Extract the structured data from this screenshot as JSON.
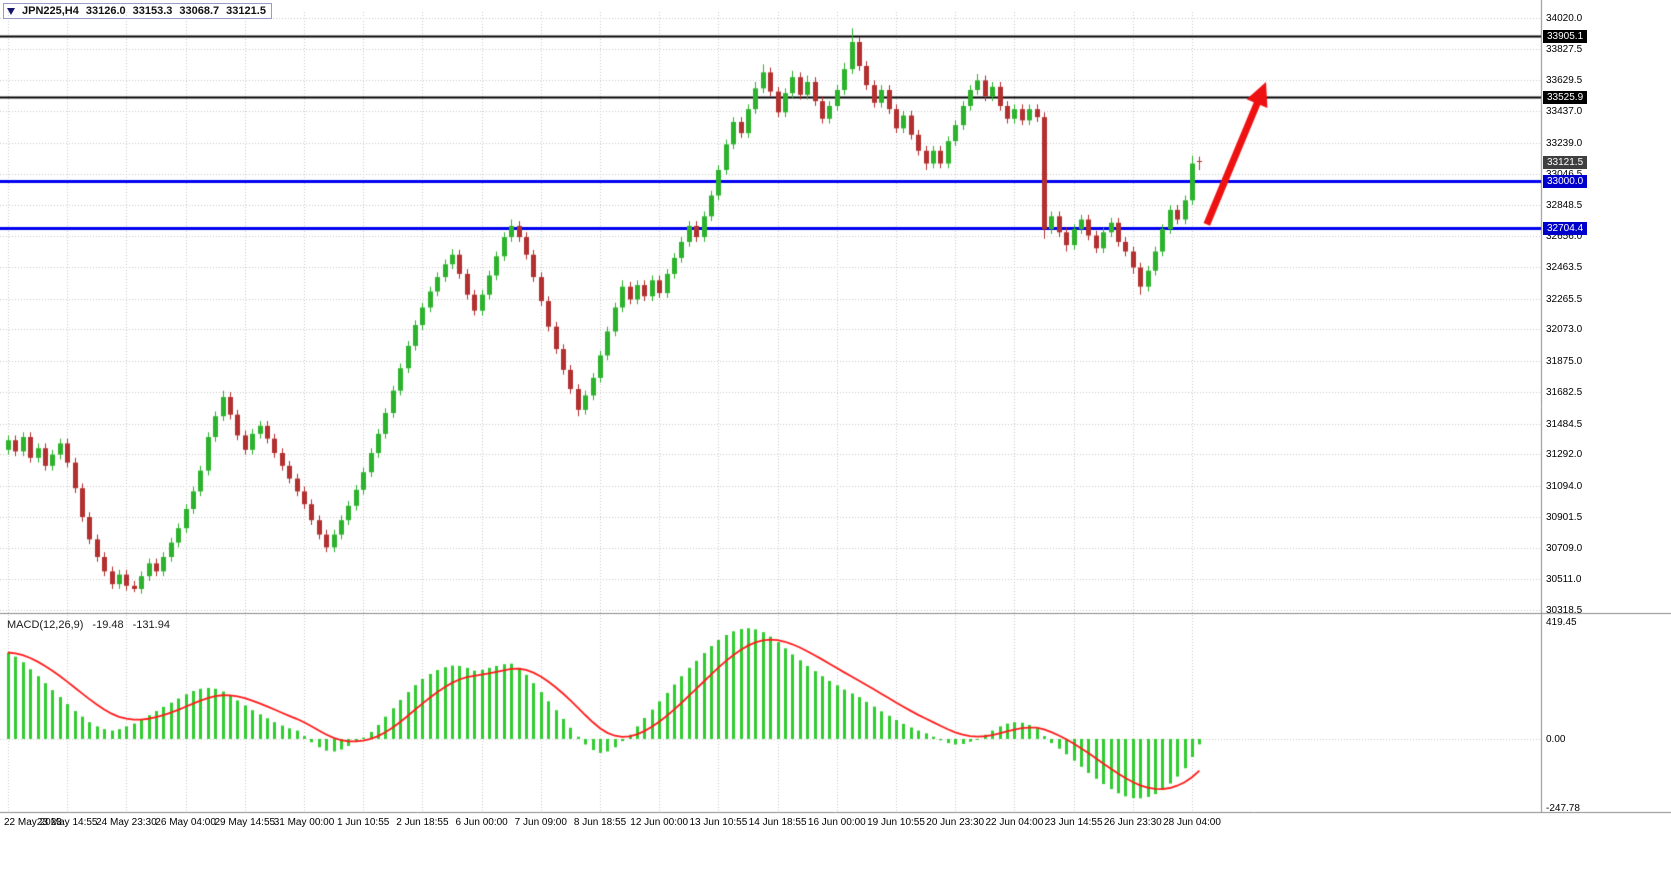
{
  "header": {
    "symbol": "JPN225,H4",
    "open": "33126.0",
    "high": "33153.3",
    "low": "33068.7",
    "close": "33121.5"
  },
  "macd_label": {
    "name": "MACD(12,26,9)",
    "main": "-19.48",
    "signal": "-131.94"
  },
  "chart_data": {
    "type": "candlestick",
    "symbol": "JPN225",
    "timeframe": "H4",
    "price_axis": {
      "min": 30318.5,
      "max": 34020.0,
      "ticks": [
        34020.0,
        33827.5,
        33629.5,
        33437.0,
        33239.0,
        33046.5,
        32848.5,
        32656.0,
        32463.5,
        32265.5,
        32073.0,
        31875.0,
        31682.5,
        31484.5,
        31292.0,
        31094.0,
        30901.5,
        30709.0,
        30511.0,
        30318.5
      ]
    },
    "price_badges": [
      {
        "value": 33905.1,
        "bg": "#000000"
      },
      {
        "value": 33525.9,
        "bg": "#000000"
      },
      {
        "value": 33121.5,
        "bg": "#3f3f3f"
      },
      {
        "value": 33000.0,
        "bg": "#0000cd"
      },
      {
        "value": 32704.4,
        "bg": "#0000cd"
      }
    ],
    "hlines": [
      {
        "value": 33905.1,
        "color": "#000000",
        "width": 2
      },
      {
        "value": 33525.9,
        "color": "#000000",
        "width": 2
      },
      {
        "value": 33000.0,
        "color": "#0000ee",
        "width": 3
      },
      {
        "value": 32704.4,
        "color": "#0000ee",
        "width": 3
      }
    ],
    "time_ticks": [
      "22 May 2023",
      "23 May 14:55",
      "24 May 23:30",
      "26 May 04:00",
      "29 May 14:55",
      "31 May 00:00",
      "1 Jun 10:55",
      "2 Jun 18:55",
      "6 Jun 00:00",
      "7 Jun 09:00",
      "8 Jun 18:55",
      "12 Jun 00:00",
      "13 Jun 10:55",
      "14 Jun 18:55",
      "16 Jun 00:00",
      "19 Jun 10:55",
      "20 Jun 23:30",
      "22 Jun 04:00",
      "23 Jun 14:55",
      "26 Jun 23:30",
      "28 Jun 04:00"
    ],
    "candles": [
      [
        31320,
        31410,
        31290,
        31380
      ],
      [
        31380,
        31410,
        31280,
        31310
      ],
      [
        31310,
        31430,
        31280,
        31400
      ],
      [
        31400,
        31430,
        31240,
        31270
      ],
      [
        31270,
        31360,
        31240,
        31330
      ],
      [
        31330,
        31360,
        31190,
        31220
      ],
      [
        31220,
        31320,
        31190,
        31290
      ],
      [
        31290,
        31390,
        31260,
        31360
      ],
      [
        31360,
        31390,
        31210,
        31240
      ],
      [
        31240,
        31270,
        31050,
        31080
      ],
      [
        31080,
        31110,
        30870,
        30900
      ],
      [
        30900,
        30930,
        30730,
        30760
      ],
      [
        30760,
        30790,
        30620,
        30650
      ],
      [
        30650,
        30680,
        30530,
        30560
      ],
      [
        30560,
        30590,
        30450,
        30480
      ],
      [
        30480,
        30570,
        30450,
        30540
      ],
      [
        30540,
        30570,
        30440,
        30470
      ],
      [
        30470,
        30500,
        30430,
        30450
      ],
      [
        30450,
        30560,
        30420,
        30530
      ],
      [
        30530,
        30640,
        30500,
        30610
      ],
      [
        30610,
        30640,
        30530,
        30560
      ],
      [
        30560,
        30680,
        30530,
        30650
      ],
      [
        30650,
        30770,
        30620,
        30740
      ],
      [
        30740,
        30860,
        30710,
        30830
      ],
      [
        30830,
        30980,
        30800,
        30950
      ],
      [
        30950,
        31090,
        30920,
        31060
      ],
      [
        31060,
        31220,
        31030,
        31190
      ],
      [
        31190,
        31430,
        31160,
        31400
      ],
      [
        31400,
        31560,
        31370,
        31530
      ],
      [
        31530,
        31690,
        31500,
        31650
      ],
      [
        31650,
        31680,
        31510,
        31540
      ],
      [
        31540,
        31570,
        31380,
        31410
      ],
      [
        31410,
        31440,
        31290,
        31320
      ],
      [
        31320,
        31450,
        31290,
        31420
      ],
      [
        31420,
        31500,
        31390,
        31470
      ],
      [
        31470,
        31500,
        31360,
        31390
      ],
      [
        31390,
        31420,
        31270,
        31300
      ],
      [
        31300,
        31330,
        31190,
        31220
      ],
      [
        31220,
        31250,
        31110,
        31140
      ],
      [
        31140,
        31170,
        31030,
        31060
      ],
      [
        31060,
        31090,
        30950,
        30980
      ],
      [
        30980,
        31010,
        30850,
        30880
      ],
      [
        30880,
        30910,
        30760,
        30790
      ],
      [
        30790,
        30820,
        30680,
        30710
      ],
      [
        30710,
        30820,
        30680,
        30790
      ],
      [
        30790,
        30910,
        30760,
        30880
      ],
      [
        30880,
        31000,
        30850,
        30970
      ],
      [
        30970,
        31100,
        30940,
        31070
      ],
      [
        31070,
        31210,
        31040,
        31180
      ],
      [
        31180,
        31330,
        31150,
        31300
      ],
      [
        31300,
        31450,
        31270,
        31420
      ],
      [
        31420,
        31580,
        31390,
        31550
      ],
      [
        31550,
        31720,
        31520,
        31690
      ],
      [
        31690,
        31860,
        31660,
        31830
      ],
      [
        31830,
        32000,
        31800,
        31970
      ],
      [
        31970,
        32130,
        31940,
        32100
      ],
      [
        32100,
        32240,
        32070,
        32210
      ],
      [
        32210,
        32340,
        32180,
        32310
      ],
      [
        32310,
        32430,
        32280,
        32400
      ],
      [
        32400,
        32510,
        32370,
        32480
      ],
      [
        32480,
        32575,
        32450,
        32540
      ],
      [
        32540,
        32570,
        32390,
        32420
      ],
      [
        32420,
        32450,
        32260,
        32290
      ],
      [
        32290,
        32320,
        32160,
        32190
      ],
      [
        32190,
        32320,
        32160,
        32290
      ],
      [
        32290,
        32440,
        32260,
        32410
      ],
      [
        32410,
        32560,
        32380,
        32530
      ],
      [
        32530,
        32680,
        32500,
        32650
      ],
      [
        32650,
        32760,
        32620,
        32720
      ],
      [
        32720,
        32750,
        32620,
        32650
      ],
      [
        32650,
        32680,
        32510,
        32540
      ],
      [
        32540,
        32570,
        32370,
        32400
      ],
      [
        32400,
        32430,
        32220,
        32250
      ],
      [
        32250,
        32280,
        32060,
        32090
      ],
      [
        32090,
        32120,
        31920,
        31950
      ],
      [
        31950,
        31980,
        31790,
        31820
      ],
      [
        31820,
        31850,
        31670,
        31700
      ],
      [
        31700,
        31730,
        31530,
        31570
      ],
      [
        31570,
        31690,
        31540,
        31660
      ],
      [
        31660,
        31800,
        31630,
        31770
      ],
      [
        31770,
        31940,
        31740,
        31910
      ],
      [
        31910,
        32090,
        31880,
        32060
      ],
      [
        32060,
        32240,
        32030,
        32210
      ],
      [
        32210,
        32380,
        32180,
        32340
      ],
      [
        32340,
        32370,
        32230,
        32260
      ],
      [
        32260,
        32380,
        32230,
        32350
      ],
      [
        32350,
        32380,
        32250,
        32280
      ],
      [
        32280,
        32410,
        32250,
        32380
      ],
      [
        32380,
        32410,
        32270,
        32300
      ],
      [
        32300,
        32450,
        32270,
        32420
      ],
      [
        32420,
        32550,
        32390,
        32520
      ],
      [
        32520,
        32650,
        32490,
        32620
      ],
      [
        32620,
        32750,
        32590,
        32720
      ],
      [
        32720,
        32750,
        32620,
        32650
      ],
      [
        32650,
        32810,
        32620,
        32780
      ],
      [
        32780,
        32940,
        32750,
        32910
      ],
      [
        32910,
        33100,
        32880,
        33070
      ],
      [
        33070,
        33260,
        33040,
        33230
      ],
      [
        33230,
        33400,
        33200,
        33370
      ],
      [
        33370,
        33400,
        33270,
        33300
      ],
      [
        33300,
        33480,
        33270,
        33450
      ],
      [
        33450,
        33620,
        33420,
        33580
      ],
      [
        33580,
        33730,
        33550,
        33680
      ],
      [
        33680,
        33710,
        33530,
        33560
      ],
      [
        33560,
        33590,
        33400,
        33430
      ],
      [
        33430,
        33580,
        33400,
        33550
      ],
      [
        33550,
        33690,
        33520,
        33650
      ],
      [
        33650,
        33680,
        33510,
        33540
      ],
      [
        33540,
        33660,
        33510,
        33620
      ],
      [
        33620,
        33650,
        33470,
        33500
      ],
      [
        33500,
        33530,
        33360,
        33390
      ],
      [
        33390,
        33500,
        33360,
        33470
      ],
      [
        33470,
        33600,
        33440,
        33570
      ],
      [
        33570,
        33740,
        33540,
        33700
      ],
      [
        33700,
        33955,
        33670,
        33870
      ],
      [
        33870,
        33900,
        33690,
        33720
      ],
      [
        33720,
        33750,
        33570,
        33600
      ],
      [
        33600,
        33630,
        33460,
        33490
      ],
      [
        33490,
        33600,
        33460,
        33570
      ],
      [
        33570,
        33600,
        33420,
        33450
      ],
      [
        33450,
        33480,
        33300,
        33330
      ],
      [
        33330,
        33440,
        33300,
        33410
      ],
      [
        33410,
        33440,
        33260,
        33290
      ],
      [
        33290,
        33320,
        33160,
        33190
      ],
      [
        33190,
        33220,
        33070,
        33110
      ],
      [
        33110,
        33220,
        33080,
        33190
      ],
      [
        33190,
        33220,
        33080,
        33110
      ],
      [
        33110,
        33280,
        33080,
        33250
      ],
      [
        33250,
        33380,
        33220,
        33350
      ],
      [
        33350,
        33500,
        33320,
        33470
      ],
      [
        33470,
        33600,
        33440,
        33570
      ],
      [
        33570,
        33670,
        33540,
        33630
      ],
      [
        33630,
        33660,
        33500,
        33530
      ],
      [
        33530,
        33620,
        33500,
        33590
      ],
      [
        33590,
        33620,
        33440,
        33470
      ],
      [
        33470,
        33500,
        33360,
        33390
      ],
      [
        33390,
        33480,
        33360,
        33450
      ],
      [
        33450,
        33480,
        33350,
        33380
      ],
      [
        33380,
        33480,
        33350,
        33450
      ],
      [
        33450,
        33480,
        33370,
        33400
      ],
      [
        33400,
        33430,
        32640,
        32700
      ],
      [
        32700,
        32810,
        32670,
        32780
      ],
      [
        32780,
        32810,
        32650,
        32680
      ],
      [
        32680,
        32710,
        32560,
        32600
      ],
      [
        32600,
        32730,
        32570,
        32700
      ],
      [
        32700,
        32790,
        32670,
        32760
      ],
      [
        32760,
        32790,
        32630,
        32660
      ],
      [
        32660,
        32690,
        32550,
        32580
      ],
      [
        32580,
        32710,
        32550,
        32680
      ],
      [
        32680,
        32770,
        32650,
        32740
      ],
      [
        32740,
        32770,
        32590,
        32620
      ],
      [
        32620,
        32650,
        32530,
        32560
      ],
      [
        32560,
        32590,
        32420,
        32460
      ],
      [
        32460,
        32490,
        32290,
        32340
      ],
      [
        32340,
        32470,
        32310,
        32440
      ],
      [
        32440,
        32590,
        32410,
        32560
      ],
      [
        32560,
        32730,
        32530,
        32700
      ],
      [
        32700,
        32850,
        32670,
        32820
      ],
      [
        32820,
        32850,
        32730,
        32760
      ],
      [
        32760,
        32910,
        32730,
        32880
      ],
      [
        32880,
        33160,
        32850,
        33110
      ],
      [
        33126.0,
        33153.3,
        33068.7,
        33121.5
      ]
    ],
    "macd": {
      "params": "12,26,9",
      "axis_max": 419.45,
      "axis_min": -247.78,
      "axis_ticks": [
        419.45,
        0,
        -247.78
      ],
      "main": [
        310,
        295,
        275,
        250,
        225,
        200,
        175,
        150,
        125,
        100,
        80,
        60,
        45,
        35,
        30,
        35,
        45,
        55,
        70,
        85,
        100,
        115,
        130,
        145,
        160,
        172,
        180,
        183,
        180,
        170,
        155,
        138,
        120,
        103,
        88,
        74,
        60,
        48,
        38,
        30,
        10,
        -12,
        -30,
        -42,
        -45,
        -38,
        -25,
        -10,
        5,
        25,
        50,
        80,
        110,
        140,
        168,
        193,
        215,
        233,
        247,
        257,
        263,
        262,
        255,
        245,
        248,
        255,
        262,
        268,
        270,
        255,
        230,
        200,
        168,
        135,
        103,
        72,
        40,
        8,
        -20,
        -40,
        -50,
        -45,
        -30,
        -8,
        15,
        45,
        75,
        105,
        135,
        165,
        195,
        225,
        255,
        280,
        308,
        333,
        355,
        373,
        386,
        394,
        397,
        393,
        383,
        367,
        347,
        325,
        303,
        282,
        262,
        243,
        225,
        208,
        192,
        177,
        163,
        150,
        133,
        116,
        99,
        83,
        68,
        54,
        41,
        30,
        20,
        8,
        -5,
        -15,
        -20,
        -18,
        -10,
        0,
        15,
        30,
        45,
        55,
        60,
        58,
        50,
        38,
        10,
        -15,
        -35,
        -55,
        -78,
        -100,
        -122,
        -143,
        -162,
        -180,
        -195,
        -206,
        -212,
        -213,
        -208,
        -198,
        -183,
        -160,
        -135,
        -105,
        -65,
        -19.48
      ]
    },
    "arrow": {
      "from": {
        "index": 162,
        "price": 32730
      },
      "to": {
        "index": 170,
        "price": 33620
      },
      "color": "#ee1111"
    },
    "colors": {
      "candle_up": "#2db22d",
      "candle_down": "#b33030",
      "macd_hist": "#30cc30",
      "macd_signal": "#ff1a1a",
      "grid": "#c9c9c9",
      "separator": "#8a8a8a",
      "axis_text": "#000000"
    }
  }
}
